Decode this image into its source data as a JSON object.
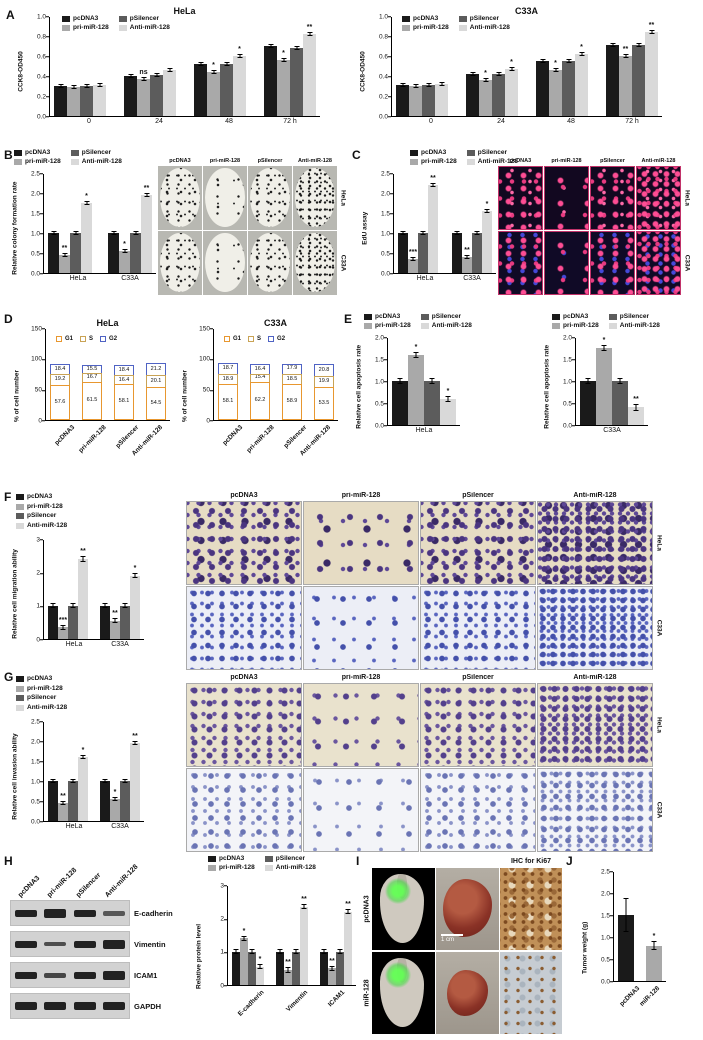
{
  "panel_labels": {
    "a": "A",
    "b": "B",
    "c": "C",
    "d": "D",
    "e": "E",
    "f": "F",
    "g": "G",
    "h": "H",
    "i": "I",
    "j": "J"
  },
  "series_labels": [
    "pcDNA3",
    "pri-miR-128",
    "pSilencer",
    "Anti-miR-128"
  ],
  "series_colors": [
    "#1a1a1a",
    "#a9a9a9",
    "#5c5c5c",
    "#d9d9d9"
  ],
  "cell_lines": [
    "HeLa",
    "C33A"
  ],
  "chart_data": {
    "a_hela": {
      "type": "grouped_bar",
      "title": "HeLa",
      "ylabel": "CCK8-OD450",
      "ylim": [
        0,
        1.0
      ],
      "yticks": [
        "0.0",
        "0.2",
        "0.4",
        "0.6",
        "0.8",
        "1.0"
      ],
      "categories": [
        "0",
        "24",
        "48",
        "72 h"
      ],
      "series": [
        "pcDNA3",
        "pri-miR-128",
        "pSilencer",
        "Anti-miR-128"
      ],
      "values": [
        [
          0.3,
          0.29,
          0.3,
          0.31
        ],
        [
          0.4,
          0.37,
          0.41,
          0.46
        ],
        [
          0.52,
          0.44,
          0.52,
          0.6
        ],
        [
          0.7,
          0.56,
          0.68,
          0.82
        ]
      ],
      "sig": [
        [
          "",
          "",
          "",
          ""
        ],
        [
          "",
          "ns",
          "",
          ""
        ],
        [
          "",
          "*",
          "",
          "*"
        ],
        [
          "",
          "*",
          "",
          "**"
        ]
      ],
      "err": 0.02
    },
    "a_c33a": {
      "type": "grouped_bar",
      "title": "C33A",
      "ylabel": "CCK8-OD450",
      "ylim": [
        0,
        1.0
      ],
      "yticks": [
        "0.0",
        "0.2",
        "0.4",
        "0.6",
        "0.8",
        "1.0"
      ],
      "categories": [
        "0",
        "24",
        "48",
        "72 h"
      ],
      "series": [
        "pcDNA3",
        "pri-miR-128",
        "pSilencer",
        "Anti-miR-128"
      ],
      "values": [
        [
          0.31,
          0.3,
          0.31,
          0.32
        ],
        [
          0.42,
          0.36,
          0.42,
          0.47
        ],
        [
          0.55,
          0.46,
          0.55,
          0.62
        ],
        [
          0.71,
          0.6,
          0.71,
          0.84
        ]
      ],
      "sig": [
        [
          "",
          "",
          "",
          ""
        ],
        [
          "",
          "*",
          "",
          "*"
        ],
        [
          "",
          "*",
          "",
          "*"
        ],
        [
          "",
          "**",
          "",
          "**"
        ]
      ],
      "err": 0.02
    },
    "b": {
      "type": "grouped_bar",
      "ylabel": "Relative colony formation rate",
      "ylim": [
        0,
        2.5
      ],
      "yticks": [
        "0.0",
        "0.5",
        "1.0",
        "1.5",
        "2.0",
        "2.5"
      ],
      "categories": [
        "HeLa",
        "C33A"
      ],
      "values": [
        [
          1.0,
          0.45,
          1.0,
          1.75
        ],
        [
          1.0,
          0.55,
          1.0,
          1.95
        ]
      ],
      "sig": [
        [
          "",
          "**",
          "",
          "*"
        ],
        [
          "",
          "*",
          "",
          "**"
        ]
      ],
      "err": 0.06
    },
    "c": {
      "type": "grouped_bar",
      "ylabel": "EdU assay",
      "ylim": [
        0,
        2.5
      ],
      "yticks": [
        "0.0",
        "0.5",
        "1.0",
        "1.5",
        "2.0",
        "2.5"
      ],
      "categories": [
        "HeLa",
        "C33A"
      ],
      "values": [
        [
          1.0,
          0.35,
          1.0,
          2.2
        ],
        [
          1.0,
          0.4,
          1.0,
          1.55
        ]
      ],
      "sig": [
        [
          "",
          "***",
          "",
          "**"
        ],
        [
          "",
          "**",
          "",
          "*"
        ]
      ],
      "err": 0.06
    },
    "d_hela": {
      "type": "stacked_bar",
      "title": "HeLa",
      "ylabel": "% of cell number",
      "ylim": [
        0,
        150
      ],
      "yticks": [
        "0",
        "50",
        "100",
        "150"
      ],
      "categories": [
        "pcDNA3",
        "pri-miR-128",
        "pSilencer",
        "Anti-miR-128"
      ],
      "xlabel_rotate": true,
      "segments": [
        {
          "name": "G1",
          "color": "#e8972f"
        },
        {
          "name": "S",
          "color": "#c9a355"
        },
        {
          "name": "G2",
          "color": "#4f63c4"
        }
      ],
      "values": {
        "G1": [
          57.6,
          61.5,
          58.1,
          54.5
        ],
        "S": [
          19.2,
          16.7,
          16.4,
          20.1
        ],
        "G2": [
          18.4,
          15.5,
          18.4,
          21.2
        ]
      }
    },
    "d_c33a": {
      "type": "stacked_bar",
      "title": "C33A",
      "ylabel": "% of cell number",
      "ylim": [
        0,
        150
      ],
      "yticks": [
        "0",
        "50",
        "100",
        "150"
      ],
      "categories": [
        "pcDNA3",
        "pri-miR-128",
        "pSilencer",
        "Anti-miR-128"
      ],
      "xlabel_rotate": true,
      "segments": [
        {
          "name": "G1",
          "color": "#e8972f"
        },
        {
          "name": "S",
          "color": "#c9a355"
        },
        {
          "name": "G2",
          "color": "#4f63c4"
        }
      ],
      "values": {
        "G1": [
          58.1,
          62.2,
          58.9,
          53.5
        ],
        "S": [
          18.9,
          15.4,
          18.5,
          19.9
        ],
        "G2": [
          18.7,
          16.4,
          17.9,
          20.8
        ]
      }
    },
    "e_hela": {
      "type": "grouped_bar",
      "ylabel": "Relative cell apoptosis rate",
      "ylim": [
        0,
        2.0
      ],
      "yticks": [
        "0.0",
        "0.5",
        "1.0",
        "1.5",
        "2.0"
      ],
      "categories": [
        "HeLa"
      ],
      "values": [
        [
          1.0,
          1.6,
          1.0,
          0.6
        ]
      ],
      "sig": [
        [
          "",
          "*",
          "",
          "*"
        ]
      ],
      "err": 0.07
    },
    "e_c33a": {
      "type": "grouped_bar",
      "ylabel": "Relative cell apoptosis rate",
      "ylim": [
        0,
        2.0
      ],
      "yticks": [
        "0.0",
        "0.5",
        "1.0",
        "1.5",
        "2.0"
      ],
      "categories": [
        "C33A"
      ],
      "values": [
        [
          1.0,
          1.75,
          1.0,
          0.4
        ]
      ],
      "sig": [
        [
          "",
          "*",
          "",
          "**"
        ]
      ],
      "err": 0.07
    },
    "f": {
      "type": "grouped_bar",
      "ylabel": "Relative cell migration ability",
      "ylim": [
        0,
        3
      ],
      "yticks": [
        "0",
        "1",
        "2",
        "3"
      ],
      "categories": [
        "HeLa",
        "C33A"
      ],
      "values": [
        [
          1.0,
          0.35,
          1.0,
          2.4
        ],
        [
          1.0,
          0.55,
          1.0,
          1.9
        ]
      ],
      "sig": [
        [
          "",
          "***",
          "",
          "**"
        ],
        [
          "",
          "**",
          "",
          "*"
        ]
      ],
      "err": 0.08
    },
    "g": {
      "type": "grouped_bar",
      "ylabel": "Relative cell invasion ability",
      "ylim": [
        0,
        2.5
      ],
      "yticks": [
        "0.0",
        "0.5",
        "1.0",
        "1.5",
        "2.0",
        "2.5"
      ],
      "categories": [
        "HeLa",
        "C33A"
      ],
      "values": [
        [
          1.0,
          0.45,
          1.0,
          1.6
        ],
        [
          1.0,
          0.55,
          1.0,
          1.95
        ]
      ],
      "sig": [
        [
          "",
          "**",
          "",
          "*"
        ],
        [
          "",
          "*",
          "",
          "**"
        ]
      ],
      "err": 0.06
    },
    "h": {
      "type": "grouped_bar",
      "ylabel": "Relative protein level",
      "ylim": [
        0,
        3
      ],
      "yticks": [
        "0",
        "1",
        "2",
        "3"
      ],
      "categories": [
        "E-cadherin",
        "Vimentin",
        "ICAM1"
      ],
      "xlabel_rotate": true,
      "values": [
        [
          1.0,
          1.4,
          1.0,
          0.55
        ],
        [
          1.0,
          0.45,
          1.0,
          2.35
        ],
        [
          1.0,
          0.5,
          1.0,
          2.2
        ]
      ],
      "sig": [
        [
          "",
          "*",
          "",
          "*"
        ],
        [
          "",
          "**",
          "",
          "**"
        ],
        [
          "",
          "**",
          "",
          "**"
        ]
      ],
      "err": 0.08
    },
    "j": {
      "type": "bar",
      "ylabel": "Tumor weight (g)",
      "ylim": [
        0,
        2.5
      ],
      "yticks": [
        "0.0",
        "0.5",
        "1.0",
        "1.5",
        "2.0",
        "2.5"
      ],
      "categories": [
        "pcDNA3",
        "miR-128"
      ],
      "xlabel_rotate": true,
      "values": [
        1.5,
        0.8
      ],
      "err": [
        0.38,
        0.1
      ],
      "colors": [
        "#1a1a1a",
        "#a9a9a9"
      ],
      "sig": [
        "",
        "*"
      ]
    }
  },
  "blot": {
    "rows": [
      "E-cadherin",
      "Vimentin",
      "ICAM1",
      "GAPDH"
    ]
  },
  "panel_i": {
    "row_labels": [
      "pcDNA3",
      "miR-128"
    ],
    "ihc_title": "IHC for Ki67",
    "scale_bar": "1 cm"
  }
}
